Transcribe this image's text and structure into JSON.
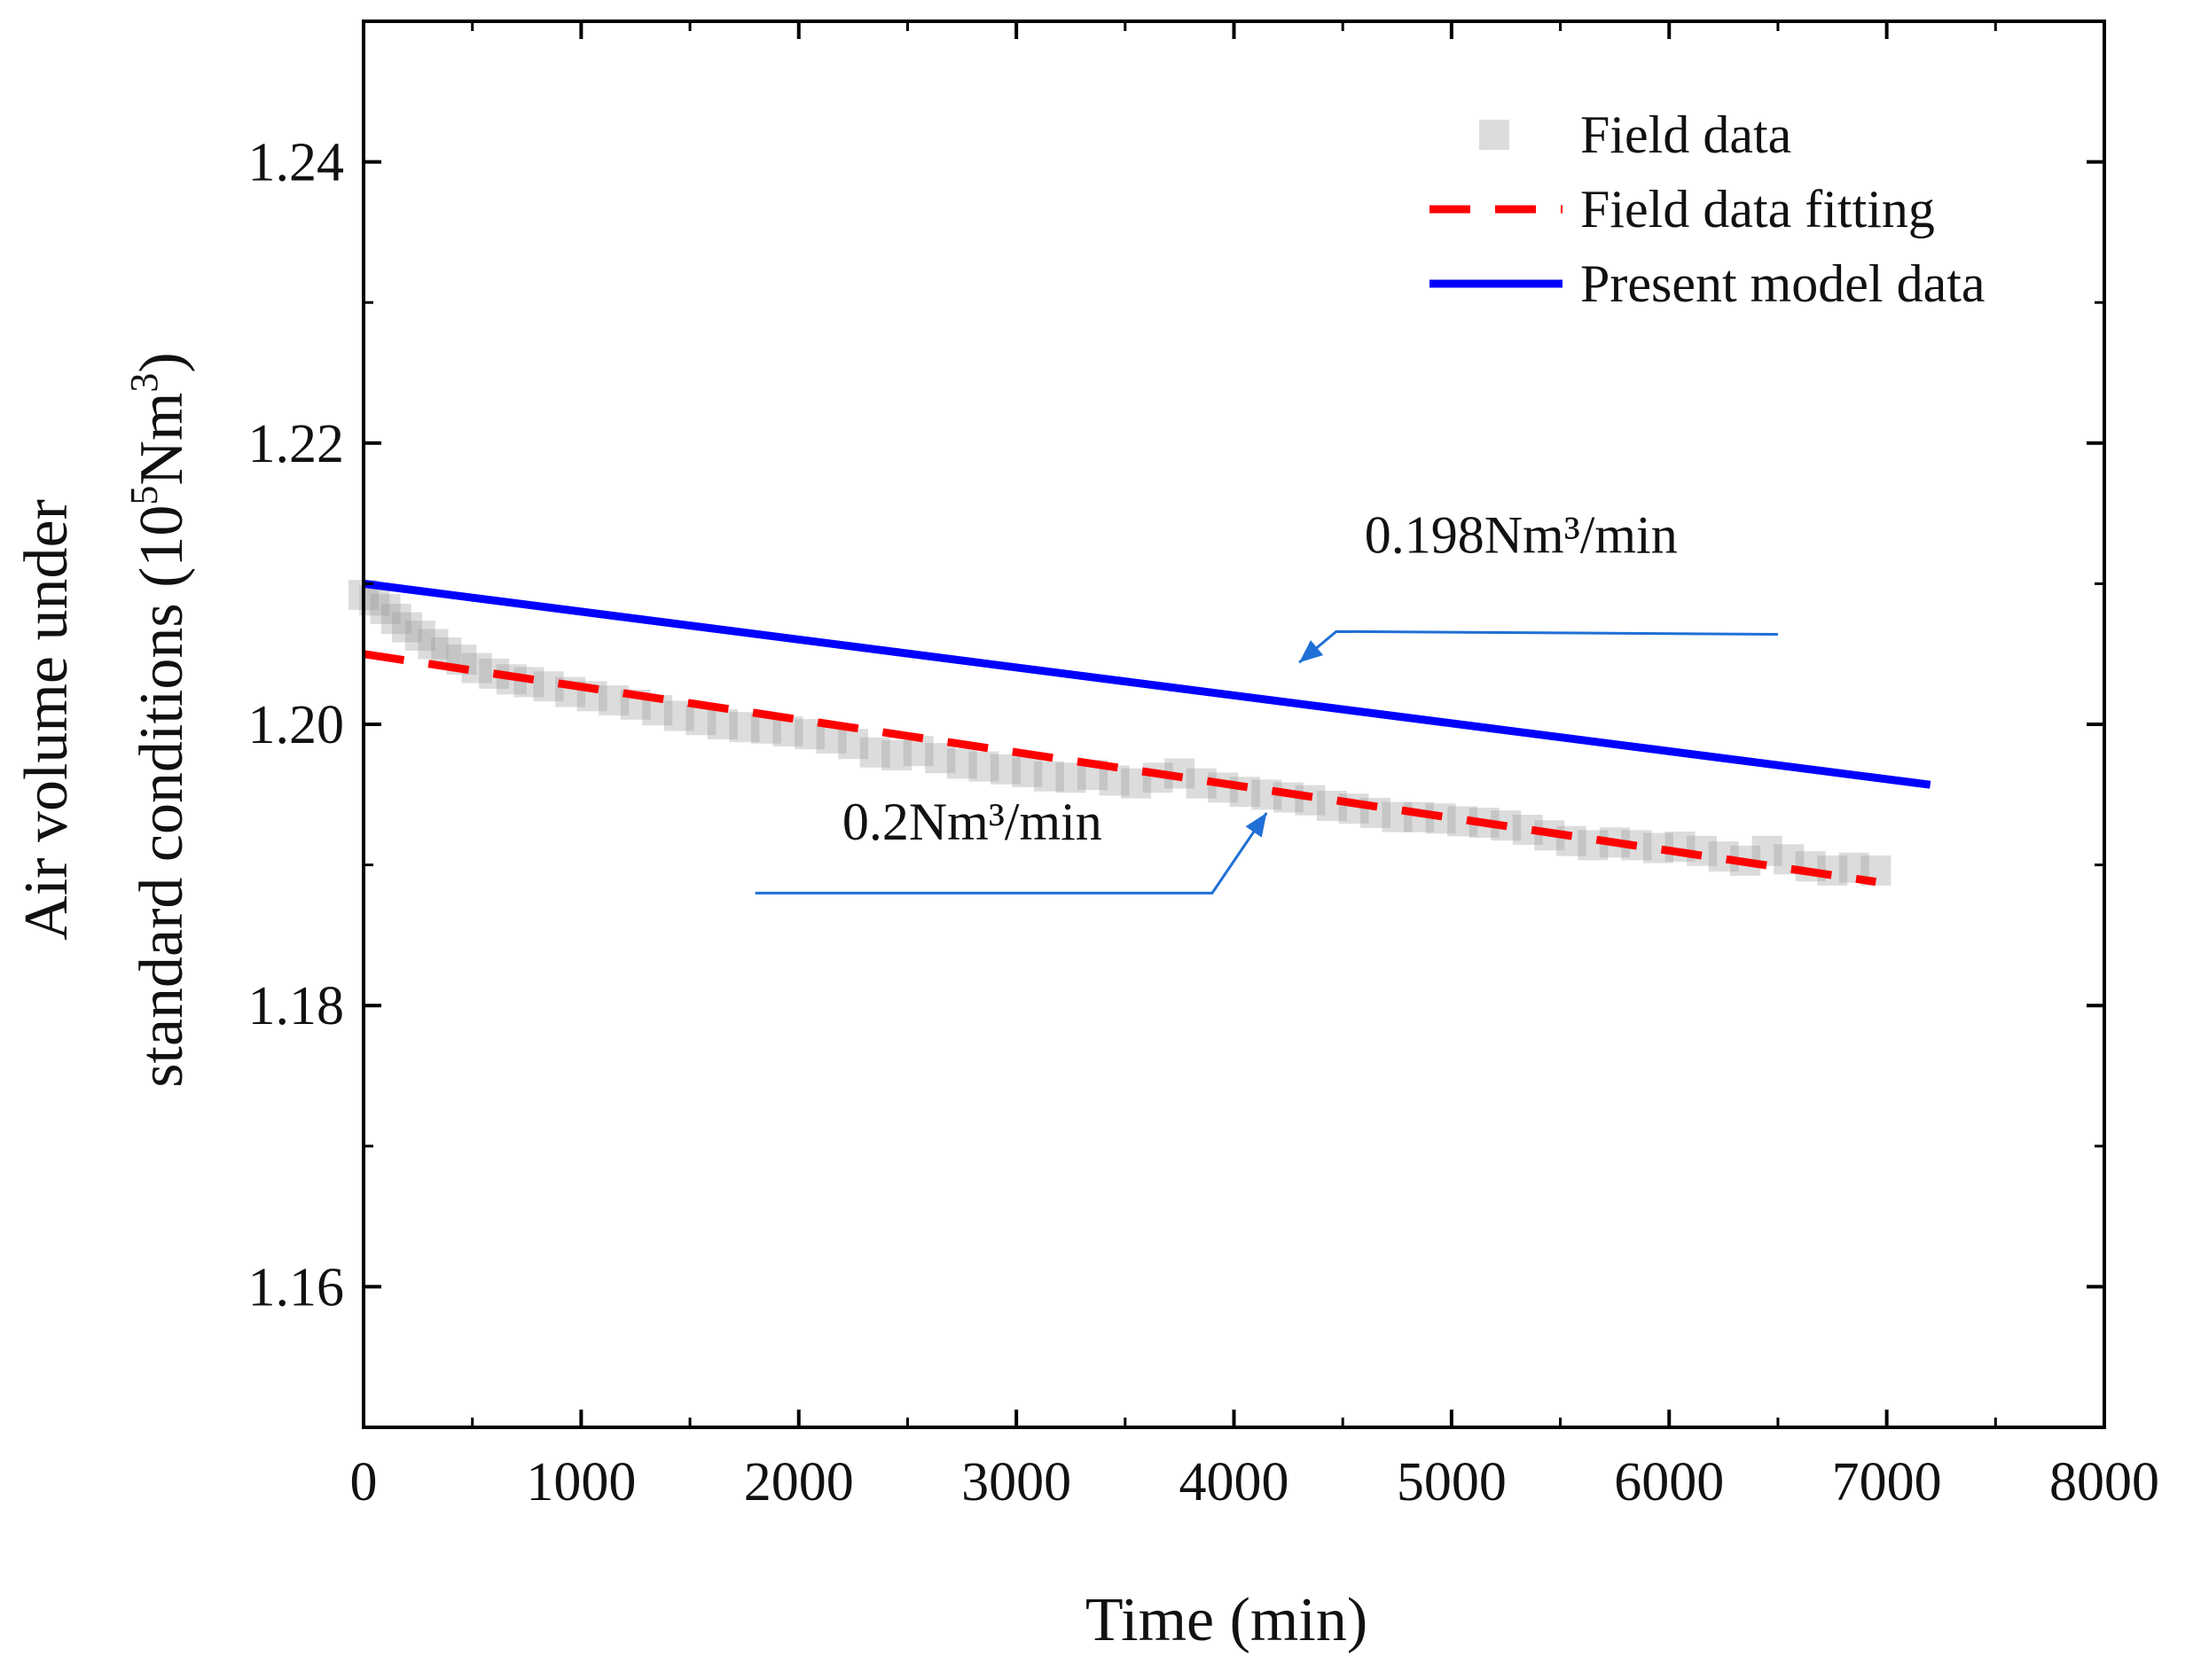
{
  "chart_data": {
    "type": "scatter",
    "xlabel": "Time (min)",
    "ylabel_line1": "Air volume under",
    "ylabel_line2_main": "standard conditions (10",
    "ylabel_line2_sup": "5",
    "ylabel_line2_unit": "Nm",
    "ylabel_line2_sup2": "3",
    "ylabel_line2_close": ")",
    "xlim": [
      0,
      8000
    ],
    "ylim": [
      1.15,
      1.25
    ],
    "x_ticks": [
      0,
      1000,
      2000,
      3000,
      4000,
      5000,
      6000,
      7000,
      8000
    ],
    "x_tick_labels": [
      "0",
      "1000",
      "2000",
      "3000",
      "4000",
      "5000",
      "6000",
      "7000",
      "8000"
    ],
    "y_ticks": [
      1.16,
      1.18,
      1.2,
      1.22,
      1.24
    ],
    "y_tick_labels": [
      "1.16",
      "1.18",
      "1.20",
      "1.22",
      "1.24"
    ],
    "legend": {
      "position": "top-right",
      "entries": [
        "Field data",
        "Field data fitting",
        "Present model data"
      ]
    },
    "series": [
      {
        "name": "Field data",
        "kind": "scatter",
        "color": "#9a9a9a",
        "x": [
          0,
          50,
          100,
          150,
          200,
          260,
          320,
          380,
          450,
          520,
          600,
          680,
          760,
          850,
          950,
          1050,
          1150,
          1250,
          1350,
          1450,
          1550,
          1650,
          1750,
          1850,
          1950,
          2050,
          2150,
          2250,
          2350,
          2450,
          2550,
          2650,
          2750,
          2850,
          2950,
          3050,
          3150,
          3250,
          3350,
          3450,
          3550,
          3650,
          3750,
          3850,
          3950,
          4050,
          4150,
          4250,
          4350,
          4450,
          4550,
          4650,
          4750,
          4850,
          4950,
          5050,
          5150,
          5250,
          5350,
          5450,
          5550,
          5650,
          5750,
          5850,
          5950,
          6050,
          6150,
          6250,
          6350,
          6450,
          6550,
          6650,
          6750,
          6850,
          6950
        ],
        "y": [
          1.2092,
          1.2088,
          1.2082,
          1.2075,
          1.2069,
          1.2063,
          1.2057,
          1.2051,
          1.2046,
          1.204,
          1.2036,
          1.2032,
          1.203,
          1.2027,
          1.2023,
          1.202,
          1.2017,
          1.2014,
          1.201,
          1.2006,
          1.2003,
          1.2,
          1.1998,
          1.1997,
          1.1995,
          1.1993,
          1.199,
          1.1986,
          1.198,
          1.1978,
          1.1981,
          1.1976,
          1.1972,
          1.197,
          1.1968,
          1.1966,
          1.1963,
          1.1962,
          1.1964,
          1.196,
          1.1958,
          1.1962,
          1.1965,
          1.1958,
          1.1955,
          1.1952,
          1.195,
          1.1948,
          1.1946,
          1.1942,
          1.194,
          1.1937,
          1.1934,
          1.1934,
          1.1933,
          1.1931,
          1.193,
          1.1928,
          1.1925,
          1.1921,
          1.1917,
          1.1914,
          1.1916,
          1.1914,
          1.1912,
          1.1913,
          1.191,
          1.1906,
          1.1903,
          1.191,
          1.1904,
          1.1899,
          1.1896,
          1.1898,
          1.1896
        ]
      },
      {
        "name": "Field data fitting",
        "kind": "line",
        "style": "dashed",
        "color": "#ff0000",
        "x": [
          0,
          6950
        ],
        "y": [
          1.205,
          1.1888
        ]
      },
      {
        "name": "Present model data",
        "kind": "line",
        "style": "solid",
        "color": "#0000ff",
        "x": [
          0,
          7200
        ],
        "y": [
          1.21,
          1.1957
        ]
      }
    ],
    "annotations": [
      {
        "text": "0.198Nm³/min",
        "text_x": 4600,
        "text_y": 1.2122,
        "path": [
          [
            6500,
            1.2064
          ],
          [
            4470,
            1.2066
          ],
          [
            4300,
            1.2044
          ]
        ],
        "target": "Present model data",
        "color": "#1f6fd6"
      },
      {
        "text": "0.2Nm³/min",
        "text_x": 2200,
        "text_y": 1.1918,
        "path": [
          [
            1800,
            1.188
          ],
          [
            3900,
            1.188
          ],
          [
            4150,
            1.1937
          ]
        ],
        "target": "Field data fitting",
        "color": "#1f6fd6"
      }
    ]
  }
}
